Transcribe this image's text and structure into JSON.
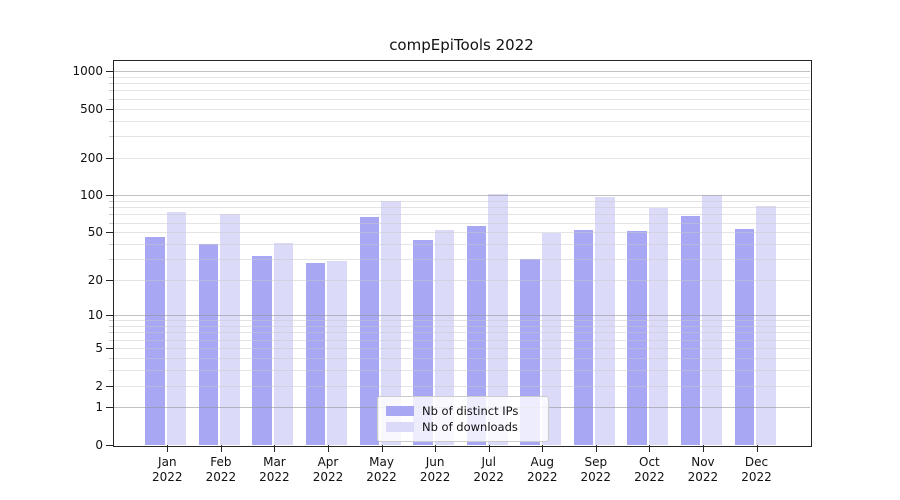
{
  "chart_data": {
    "type": "bar",
    "title": "compEpiTools 2022",
    "x_axis": {
      "categories": [
        "Jan",
        "Feb",
        "Mar",
        "Apr",
        "May",
        "Jun",
        "Jul",
        "Aug",
        "Sep",
        "Oct",
        "Nov",
        "Dec"
      ],
      "year_suffix": "2022"
    },
    "y_axis": {
      "scale": "log1p",
      "ticks": [
        0,
        1,
        2,
        5,
        10,
        20,
        50,
        100,
        200,
        500,
        1000
      ],
      "major_grid_at": [
        1,
        10,
        100,
        1000
      ],
      "minor_grid_decades": [
        1,
        10,
        100
      ],
      "ylim": [
        0,
        1100
      ],
      "grid": true
    },
    "series": [
      {
        "name": "Nb of distinct IPs",
        "color": "#a7a7f3",
        "values": [
          46,
          40,
          32,
          28,
          67,
          43,
          56,
          30,
          52,
          51,
          68,
          53
        ]
      },
      {
        "name": "Nb of downloads",
        "color": "#dbdbf9",
        "values": [
          73,
          71,
          41,
          29,
          90,
          52,
          102,
          49,
          96,
          79,
          100,
          82
        ]
      }
    ],
    "legend": {
      "position": "lower center"
    }
  },
  "colors": {
    "background": "#ffffff",
    "spine": "#262626",
    "tick_label": "#111111",
    "major_grid": "#8f8f8f",
    "minor_grid": "#c9c9c9"
  }
}
